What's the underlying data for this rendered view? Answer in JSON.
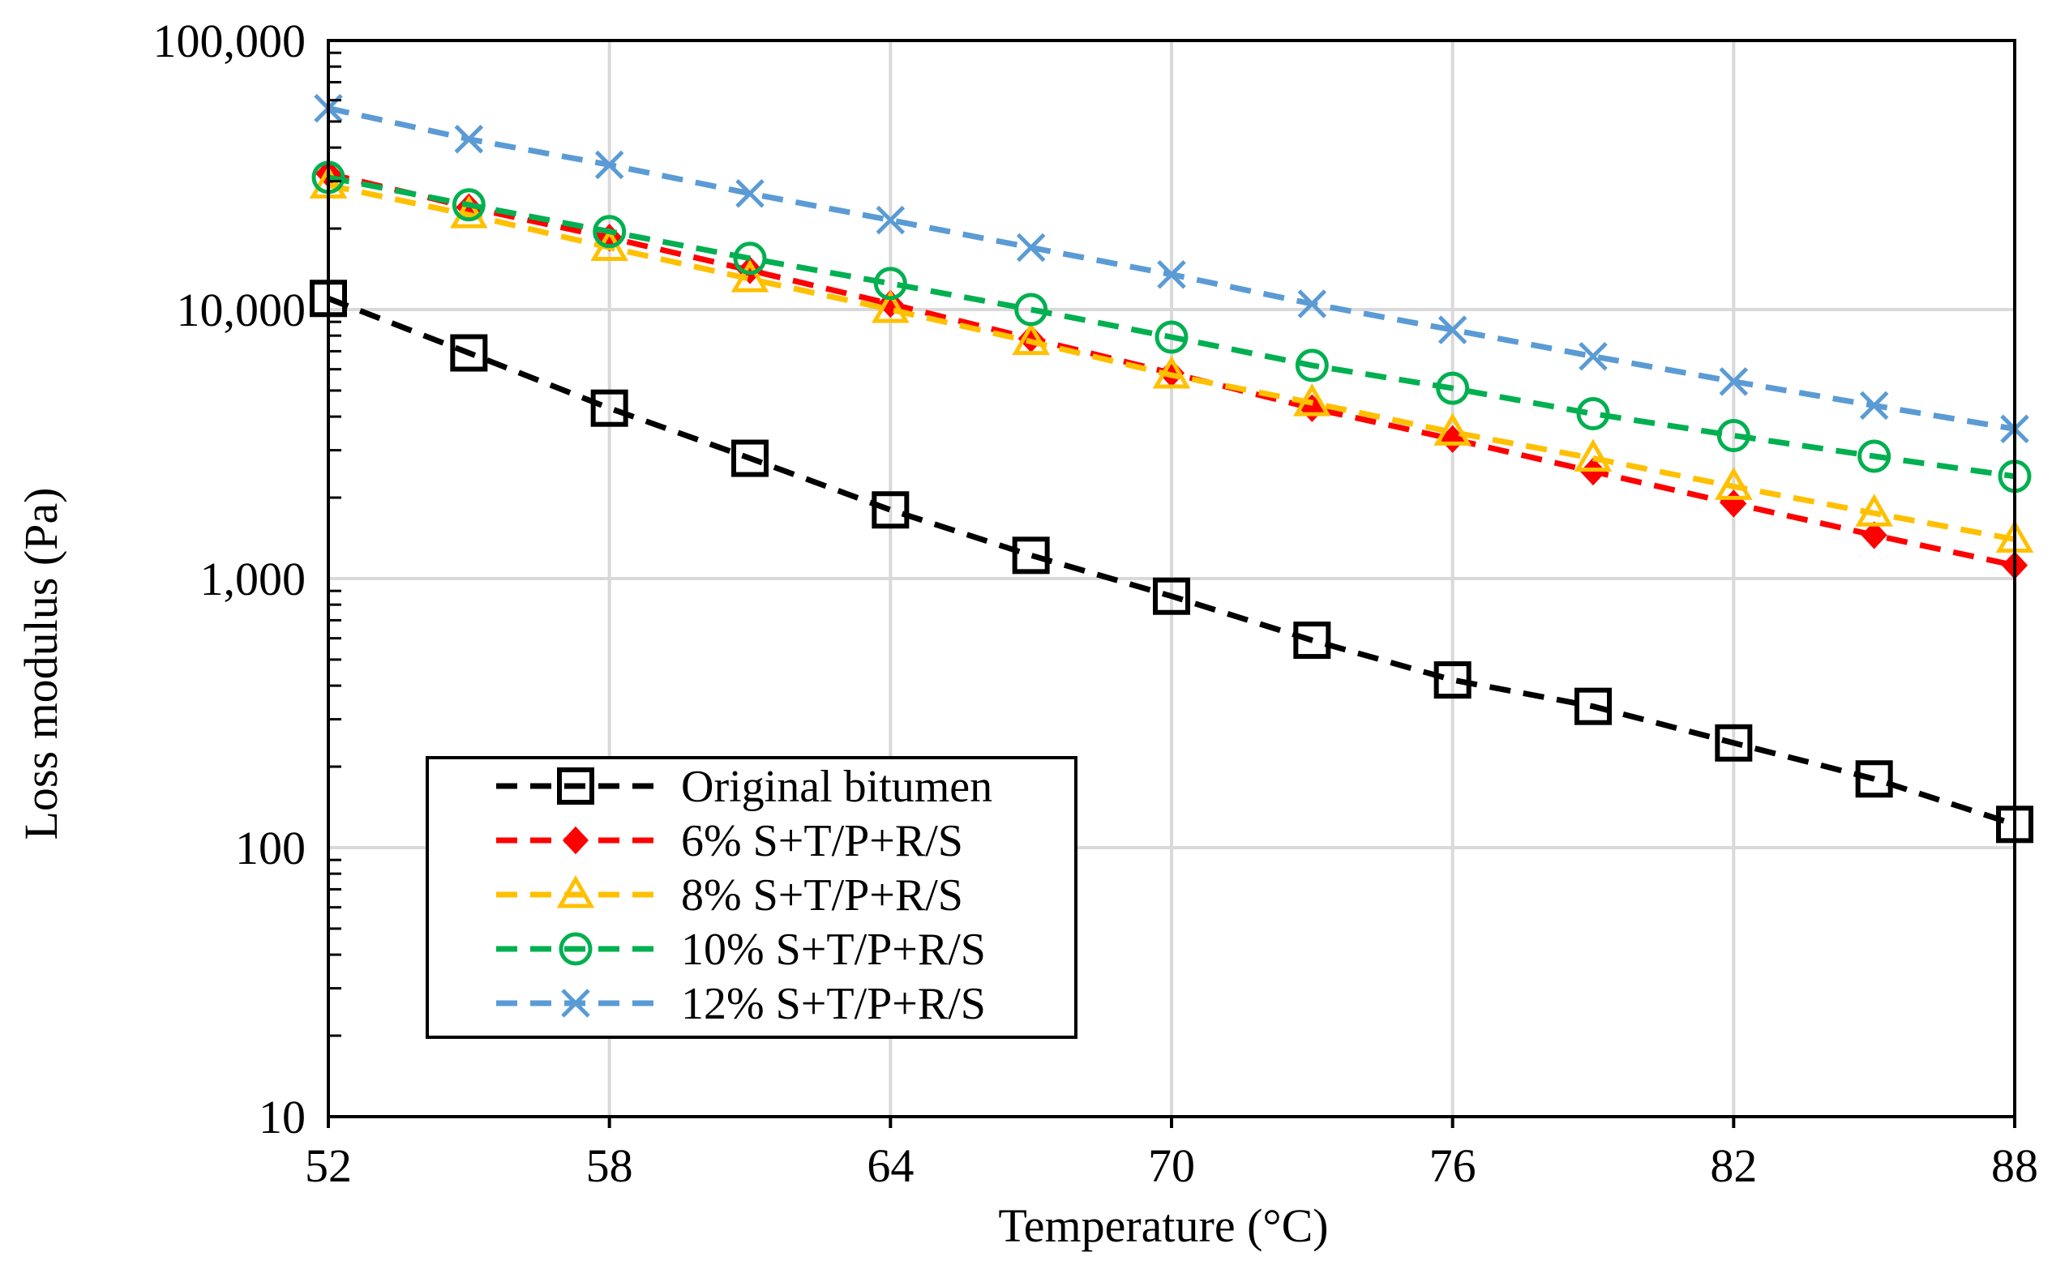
{
  "chart_data": {
    "type": "line",
    "title": "",
    "xlabel": "Temperature (°C)",
    "ylabel": "Loss modulus (Pa)",
    "xlim": [
      52,
      88
    ],
    "ylim": [
      10,
      100000
    ],
    "yscale": "log",
    "grid": true,
    "legend_position": "lower-left",
    "x": [
      52,
      55,
      58,
      61,
      64,
      67,
      70,
      73,
      76,
      79,
      82,
      85,
      88
    ],
    "x_ticks": [
      52,
      58,
      64,
      70,
      76,
      82,
      88
    ],
    "x_tick_labels": [
      "52",
      "58",
      "64",
      "70",
      "76",
      "82",
      "88"
    ],
    "y_ticks": [
      10,
      100,
      1000,
      10000,
      100000
    ],
    "y_tick_labels": [
      "10",
      "100",
      "1,000",
      "10,000",
      "100,000"
    ],
    "series": [
      {
        "name": "Original bitumen",
        "color": "#000000",
        "marker": "square",
        "values": [
          11000,
          6900,
          4300,
          2800,
          1800,
          1220,
          860,
          590,
          420,
          335,
          245,
          180,
          122
        ]
      },
      {
        "name": "6% S+T/P+R/S",
        "color": "#ff0000",
        "marker": "diamond",
        "values": [
          32000,
          24000,
          18500,
          14000,
          10500,
          7800,
          5800,
          4300,
          3300,
          2500,
          1900,
          1450,
          1120
        ]
      },
      {
        "name": "8% S+T/P+R/S",
        "color": "#ffc000",
        "marker": "triangle",
        "values": [
          29000,
          22500,
          17000,
          13000,
          10000,
          7600,
          5700,
          4500,
          3500,
          2800,
          2200,
          1750,
          1400
        ]
      },
      {
        "name": "10% S+T/P+R/S",
        "color": "#00b050",
        "marker": "circle",
        "values": [
          31000,
          24500,
          19500,
          15500,
          12500,
          10000,
          7900,
          6200,
          5100,
          4100,
          3400,
          2850,
          2400
        ]
      },
      {
        "name": "12% S+T/P+R/S",
        "color": "#5b9bd5",
        "marker": "x",
        "values": [
          56000,
          43000,
          34500,
          27000,
          21500,
          17000,
          13500,
          10500,
          8400,
          6700,
          5400,
          4400,
          3600
        ]
      }
    ]
  }
}
